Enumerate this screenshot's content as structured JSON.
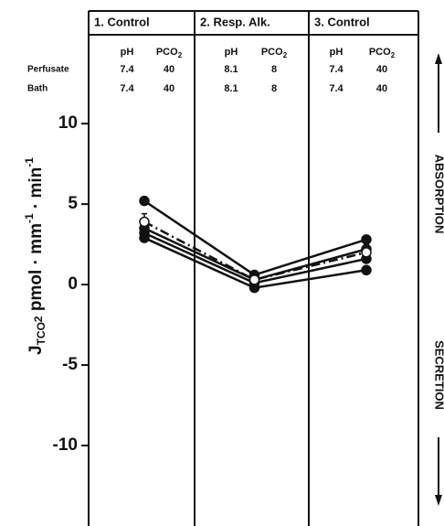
{
  "chart_data": {
    "type": "line",
    "categories": [
      "1. Control",
      "2. Resp. Alk.",
      "3. Control"
    ],
    "header": {
      "col_labels": [
        {
          "text": "pH"
        },
        {
          "text": "PCO",
          "sub": "2"
        }
      ],
      "row_labels": [
        "Perfusate",
        "Bath"
      ],
      "rows": [
        [
          [
            "7.4",
            "40"
          ],
          [
            "8.1",
            "8"
          ],
          [
            "7.4",
            "40"
          ]
        ],
        [
          [
            "7.4",
            "40"
          ],
          [
            "8.1",
            "8"
          ],
          [
            "7.4",
            "40"
          ]
        ]
      ]
    },
    "y_label": [
      {
        "text": "J",
        "shift": "base"
      },
      {
        "text": "TCO",
        "shift": "sub"
      },
      {
        "text": "2",
        "shift": "sub2"
      },
      {
        "text": " pmol · mm",
        "shift": "base"
      },
      {
        "text": "-1",
        "shift": "sup"
      },
      {
        "text": " · min",
        "shift": "base"
      },
      {
        "text": "-1",
        "shift": "sup"
      }
    ],
    "right_labels": {
      "top": "ABSORPTION",
      "bottom": "SECRETION"
    },
    "ylim": [
      -15,
      17
    ],
    "yticks": [
      10,
      5,
      0,
      -5,
      -10
    ],
    "series": [
      {
        "values": [
          5.2,
          0.6,
          2.8
        ],
        "color": "#111",
        "marker": "filled",
        "dash": "solid"
      },
      {
        "values": [
          3.5,
          0.3,
          2.2
        ],
        "color": "#111",
        "marker": "filled",
        "dash": "solid"
      },
      {
        "values": [
          3.2,
          0.1,
          1.6
        ],
        "color": "#111",
        "marker": "filled",
        "dash": "solid"
      },
      {
        "values": [
          2.9,
          -0.2,
          0.9
        ],
        "color": "#111",
        "marker": "filled",
        "dash": "solid"
      },
      {
        "values": [
          3.9,
          0.3,
          2.0
        ],
        "errors": [
          0.5,
          0.3,
          0.5
        ],
        "color": "#111",
        "marker": "open",
        "dash": "dashdot"
      }
    ]
  }
}
